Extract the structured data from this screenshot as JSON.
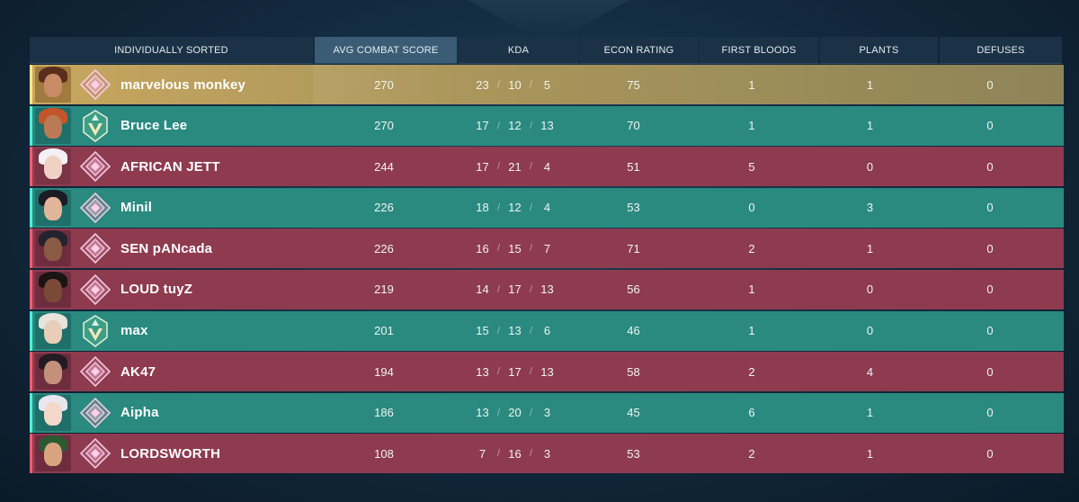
{
  "headers": {
    "name": "INDIVIDUALLY SORTED",
    "acs": "AVG COMBAT SCORE",
    "kda": "KDA",
    "econ": "ECON RATING",
    "first_bloods": "FIRST BLOODS",
    "plants": "PLANTS",
    "defuses": "DEFUSES"
  },
  "colors": {
    "ally_row": "#2a8a80",
    "enemy_row": "#8e3b4f",
    "self_row": "#c9a75f",
    "header_bg": "#1b3146",
    "header_active": "#3b5c75"
  },
  "players": [
    {
      "name": "marvelous monkey",
      "team": "self",
      "agent_icon": "agent-portrait-icon",
      "rank_icon": "diamond-rank-icon",
      "acs": "270",
      "kills": "23",
      "deaths": "10",
      "assists": "5",
      "econ": "75",
      "first_bloods": "1",
      "plants": "1",
      "defuses": "0"
    },
    {
      "name": "Bruce Lee",
      "team": "ally",
      "agent_icon": "agent-portrait-icon",
      "rank_icon": "ascendant-rank-icon",
      "acs": "270",
      "kills": "17",
      "deaths": "12",
      "assists": "13",
      "econ": "70",
      "first_bloods": "1",
      "plants": "1",
      "defuses": "0"
    },
    {
      "name": "AFRICAN JETT",
      "team": "enemy",
      "agent_icon": "agent-portrait-icon",
      "rank_icon": "diamond-rank-icon",
      "acs": "244",
      "kills": "17",
      "deaths": "21",
      "assists": "4",
      "econ": "51",
      "first_bloods": "5",
      "plants": "0",
      "defuses": "0"
    },
    {
      "name": "Minil",
      "team": "ally",
      "agent_icon": "agent-portrait-icon",
      "rank_icon": "diamond-rank-icon",
      "acs": "226",
      "kills": "18",
      "deaths": "12",
      "assists": "4",
      "econ": "53",
      "first_bloods": "0",
      "plants": "3",
      "defuses": "0"
    },
    {
      "name": "SEN pANcada",
      "team": "enemy",
      "agent_icon": "agent-portrait-icon",
      "rank_icon": "diamond-rank-icon",
      "acs": "226",
      "kills": "16",
      "deaths": "15",
      "assists": "7",
      "econ": "71",
      "first_bloods": "2",
      "plants": "1",
      "defuses": "0"
    },
    {
      "name": "LOUD tuyZ",
      "team": "enemy",
      "agent_icon": "agent-portrait-icon",
      "rank_icon": "diamond-rank-icon",
      "acs": "219",
      "kills": "14",
      "deaths": "17",
      "assists": "13",
      "econ": "56",
      "first_bloods": "1",
      "plants": "0",
      "defuses": "0"
    },
    {
      "name": "max",
      "team": "ally",
      "agent_icon": "agent-portrait-icon",
      "rank_icon": "ascendant-rank-icon",
      "acs": "201",
      "kills": "15",
      "deaths": "13",
      "assists": "6",
      "econ": "46",
      "first_bloods": "1",
      "plants": "0",
      "defuses": "0"
    },
    {
      "name": "AK47",
      "team": "enemy",
      "agent_icon": "agent-portrait-icon",
      "rank_icon": "diamond-rank-icon",
      "acs": "194",
      "kills": "13",
      "deaths": "17",
      "assists": "13",
      "econ": "58",
      "first_bloods": "2",
      "plants": "4",
      "defuses": "0"
    },
    {
      "name": "Aipha",
      "team": "ally",
      "agent_icon": "agent-portrait-icon",
      "rank_icon": "diamond-rank-icon",
      "acs": "186",
      "kills": "13",
      "deaths": "20",
      "assists": "3",
      "econ": "45",
      "first_bloods": "6",
      "plants": "1",
      "defuses": "0"
    },
    {
      "name": "LORDSWORTH",
      "team": "enemy",
      "agent_icon": "agent-portrait-icon",
      "rank_icon": "diamond-rank-icon",
      "acs": "108",
      "kills": "7",
      "deaths": "16",
      "assists": "3",
      "econ": "53",
      "first_bloods": "2",
      "plants": "1",
      "defuses": "0"
    }
  ]
}
